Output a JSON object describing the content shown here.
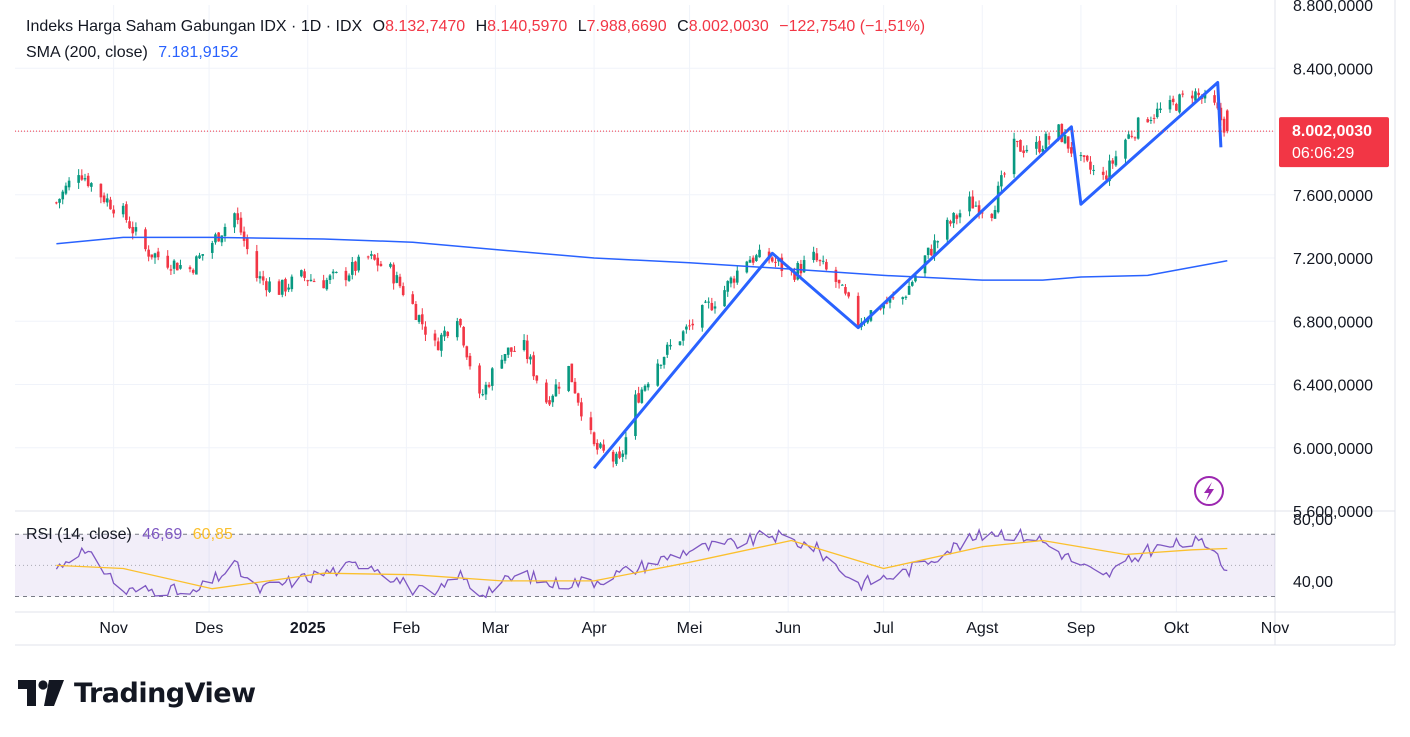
{
  "legend": {
    "title": "Indeks Harga Saham Gabungan IDX · 1D · IDX",
    "o_label": "O",
    "o_value": "8.132,7470",
    "h_label": "H",
    "h_value": "8.140,5970",
    "l_label": "L",
    "l_value": "7.988,6690",
    "c_label": "C",
    "c_value": "8.002,0030",
    "change": "−122,7540 (−1,51%)",
    "sma_label": "SMA (200, close)",
    "sma_value": "7.181,9152",
    "rsi_label": "RSI (14, close)",
    "rsi_value": "46,69",
    "rsi_ma_value": "60,85"
  },
  "price_badge": {
    "price": "8.002,0030",
    "countdown": "06:06:29",
    "color": "#f23645"
  },
  "footer": {
    "brand": "TradingView"
  },
  "colors": {
    "up": "#089981",
    "down": "#f23645",
    "sma": "#2962ff",
    "pattern": "#2962ff",
    "rsi": "#7e57c2",
    "rsi_ma": "#fbc02d",
    "rsi_band": "#7e57c2"
  },
  "chart_data": [
    {
      "type": "candlestick",
      "title": "Indeks Harga Saham Gabungan IDX · 1D · IDX",
      "x_ticks": [
        "Nov",
        "Des",
        "2025",
        "Feb",
        "Mar",
        "Apr",
        "Mei",
        "Jun",
        "Jul",
        "Agst",
        "Sep",
        "Okt",
        "Nov"
      ],
      "y_ticks": [
        "5.600,0000",
        "6.000,0000",
        "6.400,0000",
        "6.800,0000",
        "7.200,0000",
        "7.600,0000",
        "8.000,0000",
        "8.400,0000",
        "8.800,0000"
      ],
      "ylim": [
        5600,
        8800
      ],
      "close_path": [
        [
          "2024-10-14",
          7550
        ],
        [
          "2024-10-21",
          7760
        ],
        [
          "2024-10-28",
          7600
        ],
        [
          "2024-11-04",
          7480
        ],
        [
          "2024-11-11",
          7250
        ],
        [
          "2024-11-18",
          7180
        ],
        [
          "2024-11-25",
          7130
        ],
        [
          "2024-12-02",
          7300
        ],
        [
          "2024-12-09",
          7480
        ],
        [
          "2024-12-16",
          7080
        ],
        [
          "2024-12-23",
          7000
        ],
        [
          "2024-12-30",
          7080
        ],
        [
          "2025-01-06",
          7050
        ],
        [
          "2025-01-13",
          7100
        ],
        [
          "2025-01-20",
          7200
        ],
        [
          "2025-01-27",
          7120
        ],
        [
          "2025-02-03",
          6900
        ],
        [
          "2025-02-10",
          6640
        ],
        [
          "2025-02-17",
          6850
        ],
        [
          "2025-02-24",
          6300
        ],
        [
          "2025-03-03",
          6600
        ],
        [
          "2025-03-10",
          6630
        ],
        [
          "2025-03-17",
          6300
        ],
        [
          "2025-03-24",
          6500
        ],
        [
          "2025-04-01",
          6000
        ],
        [
          "2025-04-09",
          5900
        ],
        [
          "2025-04-14",
          6300
        ],
        [
          "2025-04-21",
          6550
        ],
        [
          "2025-04-28",
          6700
        ],
        [
          "2025-05-05",
          6850
        ],
        [
          "2025-05-12",
          7000
        ],
        [
          "2025-05-19",
          7200
        ],
        [
          "2025-05-26",
          7200
        ],
        [
          "2025-06-02",
          7100
        ],
        [
          "2025-06-09",
          7200
        ],
        [
          "2025-06-16",
          7050
        ],
        [
          "2025-06-23",
          6800
        ],
        [
          "2025-06-30",
          6900
        ],
        [
          "2025-07-07",
          6950
        ],
        [
          "2025-07-14",
          7200
        ],
        [
          "2025-07-21",
          7400
        ],
        [
          "2025-07-28",
          7550
        ],
        [
          "2025-08-04",
          7500
        ],
        [
          "2025-08-11",
          7900
        ],
        [
          "2025-08-18",
          7900
        ],
        [
          "2025-08-25",
          8000
        ],
        [
          "2025-09-01",
          7800
        ],
        [
          "2025-09-08",
          7700
        ],
        [
          "2025-09-15",
          7950
        ],
        [
          "2025-09-22",
          8100
        ],
        [
          "2025-09-29",
          8150
        ],
        [
          "2025-10-06",
          8250
        ],
        [
          "2025-10-13",
          8150
        ],
        [
          "2025-10-17",
          8002
        ]
      ],
      "series": [
        {
          "name": "SMA (200, close)",
          "color": "#2962ff",
          "points": [
            [
              "2024-10-14",
              7290
            ],
            [
              "2024-11-04",
              7330
            ],
            [
              "2024-12-02",
              7330
            ],
            [
              "2025-01-06",
              7320
            ],
            [
              "2025-02-03",
              7300
            ],
            [
              "2025-03-03",
              7250
            ],
            [
              "2025-04-01",
              7200
            ],
            [
              "2025-05-01",
              7170
            ],
            [
              "2025-06-02",
              7130
            ],
            [
              "2025-07-01",
              7090
            ],
            [
              "2025-08-01",
              7060
            ],
            [
              "2025-08-20",
              7060
            ],
            [
              "2025-09-01",
              7080
            ],
            [
              "2025-09-22",
              7090
            ],
            [
              "2025-10-17",
              7182
            ]
          ]
        },
        {
          "name": "pattern",
          "color": "#2962ff",
          "points": [
            [
              "2025-04-01",
              5870
            ],
            [
              "2025-05-27",
              7230
            ],
            [
              "2025-06-23",
              6760
            ],
            [
              "2025-08-29",
              8030
            ],
            [
              "2025-09-01",
              7540
            ],
            [
              "2025-10-14",
              8310
            ],
            [
              "2025-10-15",
              7900
            ]
          ]
        }
      ],
      "last_price": 8002.003
    },
    {
      "type": "line",
      "title": "RSI (14, close)",
      "y_ticks": [
        "40,00",
        "80,00"
      ],
      "ylim": [
        20,
        85
      ],
      "bands": [
        30,
        70
      ],
      "series": [
        {
          "name": "RSI",
          "color": "#7e57c2",
          "points": [
            [
              "2024-10-14",
              48
            ],
            [
              "2024-10-21",
              60
            ],
            [
              "2024-10-28",
              50
            ],
            [
              "2024-11-04",
              33
            ],
            [
              "2024-11-18",
              35
            ],
            [
              "2024-11-25",
              30
            ],
            [
              "2024-12-09",
              50
            ],
            [
              "2024-12-16",
              34
            ],
            [
              "2025-01-06",
              45
            ],
            [
              "2025-01-20",
              52
            ],
            [
              "2025-02-03",
              35
            ],
            [
              "2025-02-10",
              30
            ],
            [
              "2025-02-17",
              45
            ],
            [
              "2025-02-24",
              32
            ],
            [
              "2025-03-10",
              45
            ],
            [
              "2025-03-17",
              38
            ],
            [
              "2025-04-01",
              40
            ],
            [
              "2025-04-14",
              48
            ],
            [
              "2025-05-01",
              60
            ],
            [
              "2025-05-19",
              65
            ],
            [
              "2025-05-26",
              70
            ],
            [
              "2025-06-09",
              62
            ],
            [
              "2025-06-23",
              38
            ],
            [
              "2025-07-07",
              45
            ],
            [
              "2025-07-21",
              60
            ],
            [
              "2025-08-04",
              72
            ],
            [
              "2025-08-18",
              68
            ],
            [
              "2025-09-01",
              50
            ],
            [
              "2025-09-08",
              42
            ],
            [
              "2025-09-22",
              60
            ],
            [
              "2025-10-06",
              65
            ],
            [
              "2025-10-13",
              62
            ],
            [
              "2025-10-17",
              46.69
            ]
          ]
        },
        {
          "name": "RSI-based MA",
          "color": "#fbc02d",
          "points": [
            [
              "2024-10-14",
              50
            ],
            [
              "2024-11-04",
              48
            ],
            [
              "2024-12-02",
              35
            ],
            [
              "2025-01-06",
              45
            ],
            [
              "2025-02-03",
              44
            ],
            [
              "2025-03-03",
              40
            ],
            [
              "2025-04-01",
              40
            ],
            [
              "2025-05-01",
              52
            ],
            [
              "2025-06-02",
              66
            ],
            [
              "2025-07-01",
              48
            ],
            [
              "2025-08-01",
              62
            ],
            [
              "2025-08-20",
              66
            ],
            [
              "2025-09-15",
              57
            ],
            [
              "2025-10-06",
              60
            ],
            [
              "2025-10-17",
              60.85
            ]
          ]
        }
      ]
    }
  ]
}
